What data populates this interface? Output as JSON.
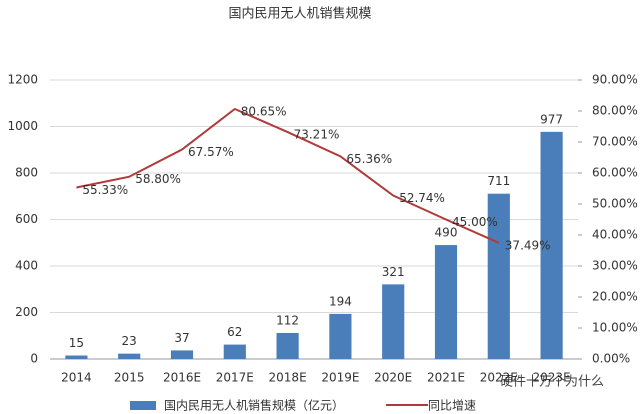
{
  "chart_data": {
    "type": "bar_line",
    "title": "国内民用无人机销售规模",
    "categories": [
      "2014",
      "2015",
      "2016E",
      "2017E",
      "2018E",
      "2019E",
      "2020E",
      "2021E",
      "2022E",
      "2023E"
    ],
    "series": [
      {
        "name": "国内民用无人机销售规模（亿元）",
        "type": "bar",
        "color": "#4a7ebb",
        "values": [
          15,
          23,
          37,
          62,
          112,
          194,
          321,
          490,
          711,
          977
        ]
      },
      {
        "name": "同比增速",
        "type": "line",
        "axis": "y2",
        "color": "#b03a3a",
        "values": [
          55.33,
          58.8,
          67.57,
          80.65,
          73.21,
          65.36,
          52.74,
          45.0,
          37.49,
          null
        ],
        "value_labels": [
          "55.33%",
          "58.80%",
          "67.57%",
          "80.65%",
          "73.21%",
          "65.36%",
          "52.74%",
          "45.00%",
          "37.49%",
          null
        ]
      }
    ],
    "ylim": [
      0,
      1200
    ],
    "yticks": [
      0,
      200,
      400,
      600,
      800,
      1000,
      1200
    ],
    "y2lim": [
      0,
      90
    ],
    "y2ticks": [
      {
        "value": 0,
        "label": "0.00%"
      },
      {
        "value": 10,
        "label": "10.00%"
      },
      {
        "value": 20,
        "label": "20.00%"
      },
      {
        "value": 30,
        "label": "30.00%"
      },
      {
        "value": 40,
        "label": "40.00%"
      },
      {
        "value": 50,
        "label": "50.00%"
      },
      {
        "value": 60,
        "label": "60.00%"
      },
      {
        "value": 70,
        "label": "70.00%"
      },
      {
        "value": 80,
        "label": "80.00%"
      },
      {
        "value": 90,
        "label": "90.00%"
      }
    ],
    "grid": true,
    "legend": "bottom",
    "watermark": "硬件十万个为什么"
  }
}
